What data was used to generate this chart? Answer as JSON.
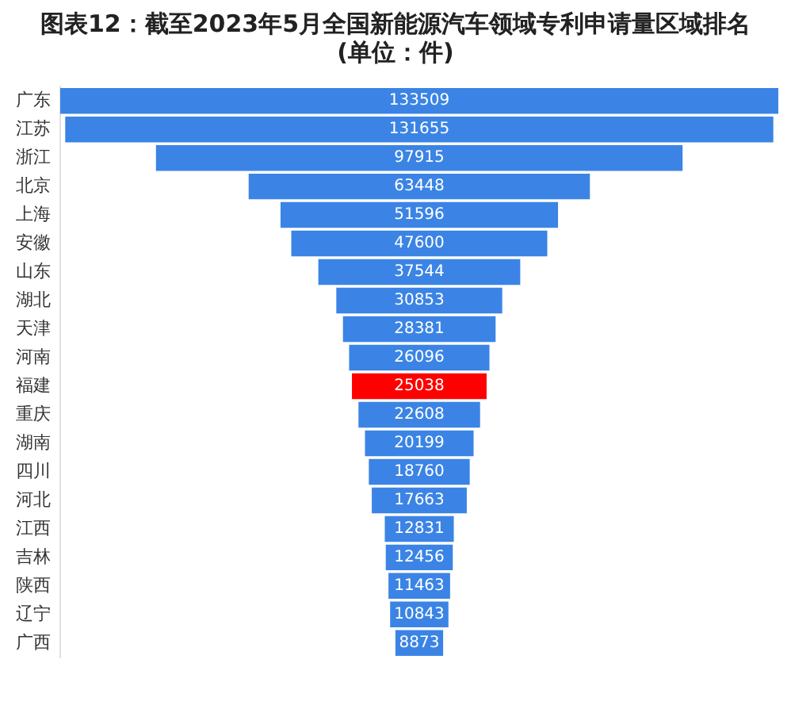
{
  "chart_data": {
    "type": "other",
    "title": "图表12：截至2023年5月全国新能源汽车领域专利申请量区域排名 (单位：件)",
    "categories": [
      "广东",
      "江苏",
      "浙江",
      "北京",
      "上海",
      "安徽",
      "山东",
      "湖北",
      "天津",
      "河南",
      "福建",
      "重庆",
      "湖南",
      "四川",
      "河北",
      "江西",
      "吉林",
      "陕西",
      "辽宁",
      "广西"
    ],
    "values": [
      133509,
      131655,
      97915,
      63448,
      51596,
      47600,
      37544,
      30853,
      28381,
      26096,
      25038,
      22608,
      20199,
      18760,
      17663,
      12831,
      12456,
      11463,
      10843,
      8873
    ],
    "colors": [
      "#3b84e5",
      "#3b84e5",
      "#3b84e5",
      "#3b84e5",
      "#3b84e5",
      "#3b84e5",
      "#3b84e5",
      "#3b84e5",
      "#3b84e5",
      "#3b84e5",
      "#ff0000",
      "#3b84e5",
      "#3b84e5",
      "#3b84e5",
      "#3b84e5",
      "#3b84e5",
      "#3b84e5",
      "#3b84e5",
      "#3b84e5",
      "#3b84e5"
    ],
    "data_labels": true
  }
}
